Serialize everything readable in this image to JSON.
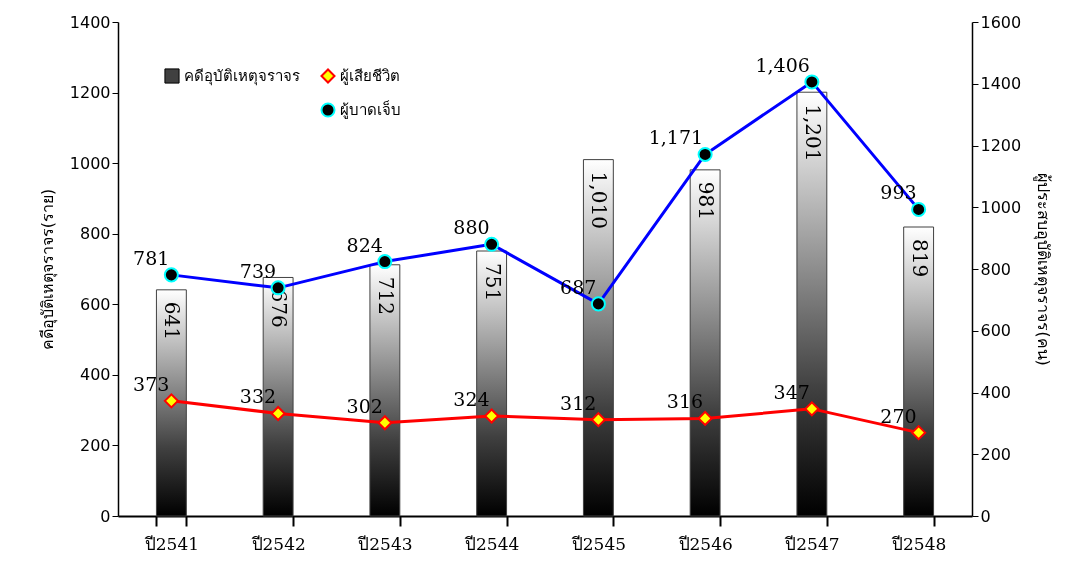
{
  "chart_data": {
    "type": "bar",
    "xlabel": null,
    "ylabel": "คดีอุบัติเหตุจราจร(ราย)",
    "y2label": "ผู้ประสบอุบัติเหตุจราจร(คน)",
    "categories": [
      "ปี2541",
      "ปี2542",
      "ปี2543",
      "ปี2544",
      "ปี2545",
      "ปี2546",
      "ปี2547",
      "ปี2548"
    ],
    "series": [
      {
        "name": "คดีอุบัติเหตุจราจร",
        "color": "#404040",
        "values": [
          641,
          676,
          712,
          751,
          1010,
          981,
          1201,
          819
        ],
        "value_labels": [
          "641",
          "676",
          "712",
          "751",
          "1,010",
          "981",
          "1,201",
          "819"
        ]
      },
      {
        "name": "ผู้เสียชีวิต",
        "type": "line",
        "axis": "y2",
        "marker": "diamond",
        "color": "#ff0000",
        "values": [
          373,
          332,
          302,
          324,
          312,
          316,
          347,
          270
        ]
      },
      {
        "name": "ผู้บาดเจ็บ",
        "type": "line",
        "axis": "y2",
        "marker": "circle",
        "color": "#0000ff",
        "values": [
          781,
          739,
          824,
          880,
          687,
          1171,
          1406,
          993
        ],
        "value_labels": [
          "781",
          "739",
          "824",
          "880",
          "687",
          "1,171",
          "1,406",
          "993"
        ]
      }
    ],
    "ylim": [
      0,
      1400
    ],
    "yticks": [
      0,
      200,
      400,
      600,
      800,
      1000,
      1200,
      1400
    ],
    "y2lim": [
      0,
      1600
    ],
    "y2ticks": [
      0,
      200,
      400,
      600,
      800,
      1000,
      1200,
      1400,
      1600
    ],
    "data_labels": true,
    "legend": "top left",
    "grid": false
  }
}
